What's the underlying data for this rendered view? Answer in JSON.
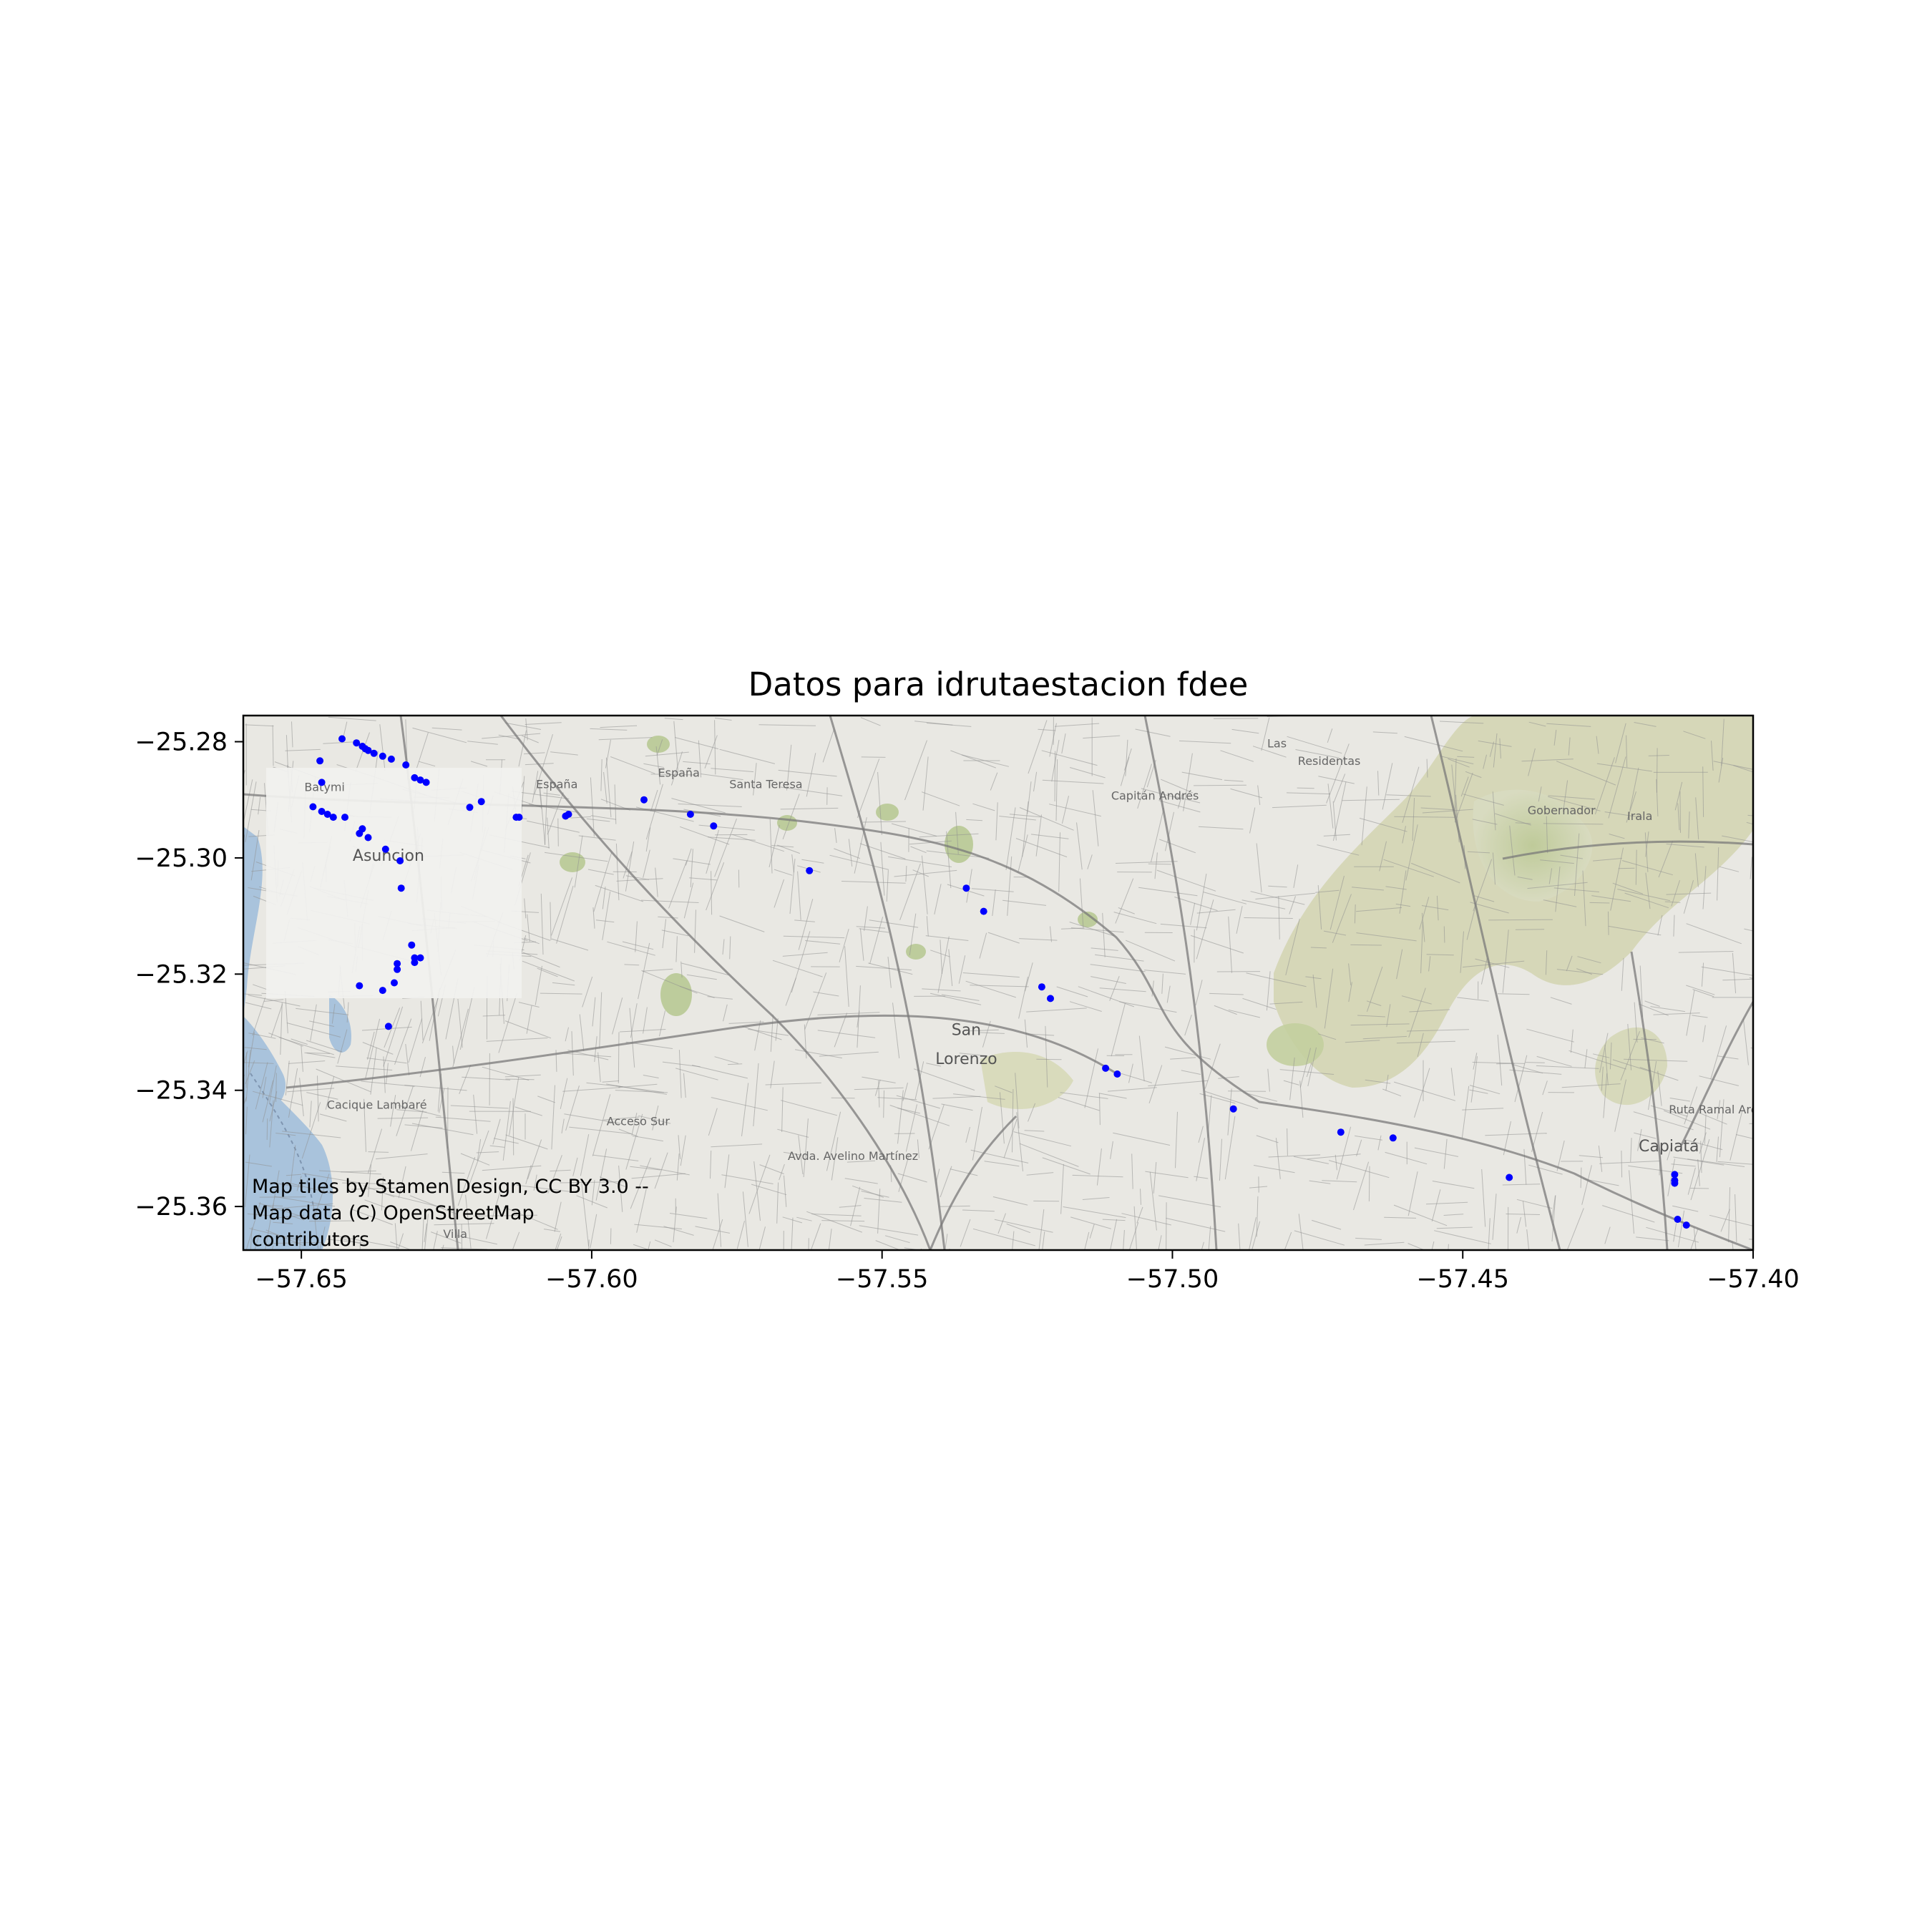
{
  "title": "Datos para idrutaestacion fdee",
  "map": {
    "attribution_lines": [
      "Map tiles by Stamen Design, CC BY 3.0 --",
      "Map data (C) OpenStreetMap",
      "contributors"
    ],
    "place_labels": [
      {
        "text": "Asuncion",
        "lon": -57.635,
        "lat": -25.3005
      },
      {
        "text": "San",
        "lon": -57.5355,
        "lat": -25.3305
      },
      {
        "text": "Lorenzo",
        "lon": -57.5355,
        "lat": -25.3355
      },
      {
        "text": "Capiatá",
        "lon": -57.4145,
        "lat": -25.3505
      },
      {
        "text": "Villa",
        "lon": -57.6235,
        "lat": -25.3654
      },
      {
        "text": "Gobernador",
        "lon": -57.433,
        "lat": -25.2925
      },
      {
        "text": "Irala",
        "lon": -57.4195,
        "lat": -25.2935
      },
      {
        "text": "Las",
        "lon": -57.482,
        "lat": -25.281
      },
      {
        "text": "Residentas",
        "lon": -57.473,
        "lat": -25.284
      },
      {
        "text": "Capitán Andrés",
        "lon": -57.503,
        "lat": -25.29
      },
      {
        "text": "España",
        "lon": -57.606,
        "lat": -25.288
      },
      {
        "text": "España",
        "lon": -57.585,
        "lat": -25.286
      },
      {
        "text": "Santa Teresa",
        "lon": -57.57,
        "lat": -25.288
      },
      {
        "text": "Cacique Lambaré",
        "lon": -57.637,
        "lat": -25.3432
      },
      {
        "text": "Acceso Sur",
        "lon": -57.592,
        "lat": -25.346
      },
      {
        "text": "Avda. Avelino Martínez",
        "lon": -57.555,
        "lat": -25.352
      },
      {
        "text": "Ruta Ramal Areguá",
        "lon": -57.405,
        "lat": -25.344
      },
      {
        "text": "Batymi",
        "lon": -57.646,
        "lat": -25.2885
      }
    ],
    "colors": {
      "point": "#0000ff",
      "land": "#e9e8e3",
      "water": "#a9c3dc",
      "park": "#c7d1a6",
      "street": "#8f8f8f"
    }
  },
  "chart_data": {
    "type": "scatter",
    "title": "Datos para idrutaestacion fdee",
    "xlabel": "",
    "ylabel": "",
    "xlim": [
      -57.66,
      -57.4
    ],
    "ylim": [
      -25.3675,
      -25.2755
    ],
    "xticks": [
      -57.65,
      -57.6,
      -57.55,
      -57.5,
      -57.45,
      -57.4
    ],
    "yticks": [
      -25.28,
      -25.3,
      -25.32,
      -25.34,
      -25.36
    ],
    "xtick_labels": [
      "−57.65",
      "−57.60",
      "−57.55",
      "−57.50",
      "−57.45",
      "−57.40"
    ],
    "ytick_labels": [
      "−25.28",
      "−25.30",
      "−25.32",
      "−25.34",
      "−25.36"
    ],
    "grid": false,
    "series": [
      {
        "color": "#0000ff",
        "points": [
          [
            -57.643,
            -25.2795
          ],
          [
            -57.6405,
            -25.2802
          ],
          [
            -57.6395,
            -25.2808
          ],
          [
            -57.639,
            -25.2812
          ],
          [
            -57.6385,
            -25.2815
          ],
          [
            -57.6375,
            -25.282
          ],
          [
            -57.636,
            -25.2825
          ],
          [
            -57.6345,
            -25.283
          ],
          [
            -57.6468,
            -25.2833
          ],
          [
            -57.632,
            -25.284
          ],
          [
            -57.6305,
            -25.2862
          ],
          [
            -57.6295,
            -25.2866
          ],
          [
            -57.6285,
            -25.287
          ],
          [
            -57.6465,
            -25.287
          ],
          [
            -57.621,
            -25.2913
          ],
          [
            -57.619,
            -25.2903
          ],
          [
            -57.613,
            -25.293
          ],
          [
            -57.6125,
            -25.293
          ],
          [
            -57.6045,
            -25.2928
          ],
          [
            -57.604,
            -25.2925
          ],
          [
            -57.591,
            -25.29
          ],
          [
            -57.583,
            -25.2925
          ],
          [
            -57.579,
            -25.2945
          ],
          [
            -57.648,
            -25.2912
          ],
          [
            -57.6465,
            -25.292
          ],
          [
            -57.6455,
            -25.2925
          ],
          [
            -57.6445,
            -25.293
          ],
          [
            -57.6425,
            -25.293
          ],
          [
            -57.6395,
            -25.295
          ],
          [
            -57.64,
            -25.2958
          ],
          [
            -57.6385,
            -25.2965
          ],
          [
            -57.6355,
            -25.2985
          ],
          [
            -57.633,
            -25.3005
          ],
          [
            -57.6328,
            -25.3052
          ],
          [
            -57.5625,
            -25.3022
          ],
          [
            -57.5355,
            -25.3052
          ],
          [
            -57.5325,
            -25.3092
          ],
          [
            -57.631,
            -25.315
          ],
          [
            -57.6305,
            -25.3172
          ],
          [
            -57.6295,
            -25.3172
          ],
          [
            -57.6305,
            -25.318
          ],
          [
            -57.6335,
            -25.3182
          ],
          [
            -57.6335,
            -25.3192
          ],
          [
            -57.64,
            -25.322
          ],
          [
            -57.634,
            -25.3215
          ],
          [
            -57.636,
            -25.3228
          ],
          [
            -57.5225,
            -25.3222
          ],
          [
            -57.521,
            -25.3242
          ],
          [
            -57.635,
            -25.329
          ],
          [
            -57.5115,
            -25.3362
          ],
          [
            -57.5095,
            -25.3372
          ],
          [
            -57.4895,
            -25.3432
          ],
          [
            -57.471,
            -25.3472
          ],
          [
            -57.462,
            -25.3482
          ],
          [
            -57.442,
            -25.355
          ],
          [
            -57.4135,
            -25.3545
          ],
          [
            -57.4135,
            -25.3555
          ],
          [
            -57.4135,
            -25.356
          ],
          [
            -57.413,
            -25.3622
          ],
          [
            -57.4115,
            -25.3632
          ]
        ]
      }
    ]
  }
}
